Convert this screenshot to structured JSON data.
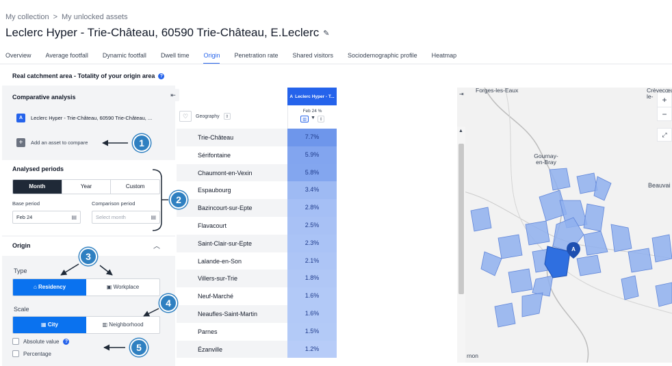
{
  "breadcrumb": {
    "root": "My collection",
    "sep": ">",
    "current": "My unlocked assets"
  },
  "title": "Leclerc Hyper - Trie-Château, 60590 Trie-Château, E.Leclerc",
  "tabs": [
    {
      "label": "Overview"
    },
    {
      "label": "Average footfall"
    },
    {
      "label": "Dynamic footfall"
    },
    {
      "label": "Dwell time"
    },
    {
      "label": "Origin",
      "active": true
    },
    {
      "label": "Penetration rate"
    },
    {
      "label": "Shared visitors"
    },
    {
      "label": "Sociodemographic profile"
    },
    {
      "label": "Heatmap"
    }
  ],
  "catchment_title": "Real catchment area - Totality of your origin area",
  "comparative": {
    "title": "Comparative analysis",
    "asset_badge": "A",
    "asset_label": "Leclerc Hyper - Trie-Château, 60590 Trie-Château, ...",
    "add_label": "Add an asset to compare"
  },
  "periods": {
    "title": "Analysed periods",
    "options": [
      "Month",
      "Year",
      "Custom"
    ],
    "selected": "Month",
    "base_label": "Base period",
    "base_value": "Feb 24",
    "comparison_label": "Comparison period",
    "comparison_placeholder": "Select month"
  },
  "origin": {
    "title": "Origin",
    "type_label": "Type",
    "type_options": [
      "Residency",
      "Workplace"
    ],
    "type_selected": "Residency",
    "scale_label": "Scale",
    "scale_options": [
      "City",
      "Neighborhood"
    ],
    "scale_selected": "City",
    "absolute_label": "Absolute value",
    "percentage_label": "Percentage"
  },
  "table": {
    "geo_header": "Geography",
    "col_badge": "A",
    "col_header": "Leclerc Hyper - T...",
    "col_sub": "Feb 24 %",
    "rows": [
      {
        "name": "Trie-Château",
        "value": "7.7%",
        "pct": 7.7
      },
      {
        "name": "Sérifontaine",
        "value": "5.9%",
        "pct": 5.9
      },
      {
        "name": "Chaumont-en-Vexin",
        "value": "5.8%",
        "pct": 5.8
      },
      {
        "name": "Espaubourg",
        "value": "3.4%",
        "pct": 3.4
      },
      {
        "name": "Bazincourt-sur-Epte",
        "value": "2.8%",
        "pct": 2.8
      },
      {
        "name": "Flavacourt",
        "value": "2.5%",
        "pct": 2.5
      },
      {
        "name": "Saint-Clair-sur-Epte",
        "value": "2.3%",
        "pct": 2.3
      },
      {
        "name": "Lalande-en-Son",
        "value": "2.1%",
        "pct": 2.1
      },
      {
        "name": "Villers-sur-Trie",
        "value": "1.8%",
        "pct": 1.8
      },
      {
        "name": "Neuf-Marché",
        "value": "1.6%",
        "pct": 1.6
      },
      {
        "name": "Neaufles-Saint-Martin",
        "value": "1.6%",
        "pct": 1.6
      },
      {
        "name": "Parnes",
        "value": "1.5%",
        "pct": 1.5
      },
      {
        "name": "Ézanville",
        "value": "1.2%",
        "pct": 1.2
      }
    ]
  },
  "callouts": [
    "1",
    "2",
    "3",
    "4",
    "5"
  ],
  "map": {
    "labels": [
      "Forges-les-Eaux",
      "Crèvecœur-le-",
      "Gournay-en-Bray",
      "Beauvai",
      "rnon"
    ],
    "marker": "A",
    "zoom_in": "+",
    "zoom_out": "−"
  },
  "colors": {
    "accent": "#2563eb",
    "active_blue": "#0a72ef",
    "callout": "#2f80c1",
    "dark": "#1f2937"
  }
}
